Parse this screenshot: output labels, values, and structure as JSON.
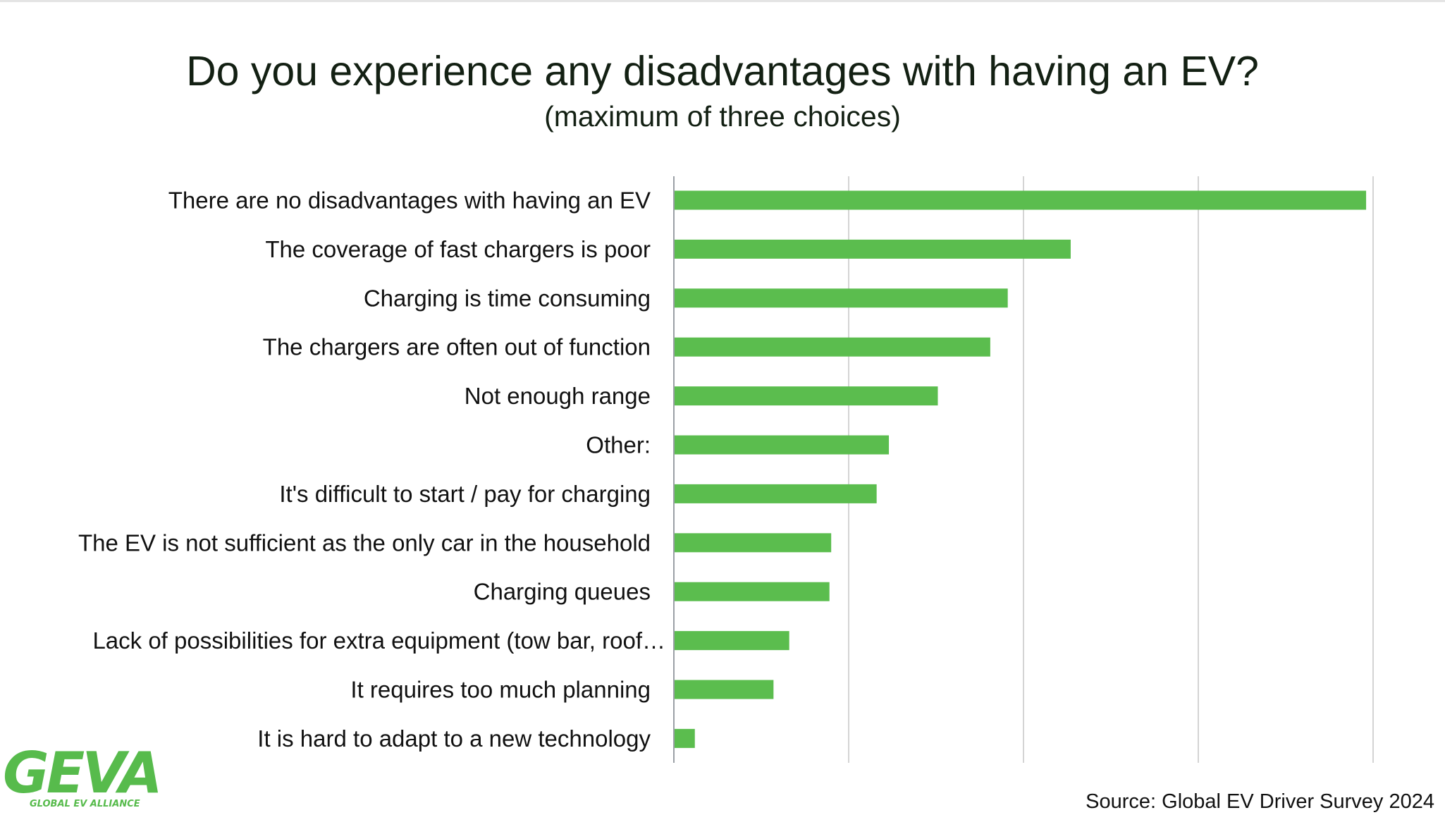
{
  "title": "Do you experience any disadvantages with having an EV?",
  "subtitle": "(maximum of three choices)",
  "source": "Source: Global EV Driver Survey 2024",
  "logo": {
    "text": "GEVA",
    "tagline": "GLOBAL EV ALLIANCE",
    "color": "#57bb4c"
  },
  "colors": {
    "bar": "#5bbd4e",
    "grid": "#d4d4d4",
    "axis": "#9a9fa6"
  },
  "chart_data": {
    "type": "bar",
    "orientation": "horizontal",
    "title": "Do you experience any disadvantages with having an EV?",
    "subtitle": "(maximum of three choices)",
    "categories": [
      "There are no disadvantages with having an EV",
      "The coverage of fast chargers is poor",
      "Charging is time consuming",
      "The chargers are often out of function",
      "Not enough range",
      "Other:",
      "It's difficult to start / pay for charging",
      "The EV is not sufficient as the only car in the household",
      "Charging queues",
      "Lack of possibilities for extra equipment (tow bar, roof…",
      "It requires too much planning",
      "It is hard to adapt to a new technology"
    ],
    "values": [
      39.6,
      22.7,
      19.1,
      18.1,
      15.1,
      12.3,
      11.6,
      9.0,
      8.9,
      6.6,
      5.7,
      1.2
    ],
    "xlim": [
      0,
      40
    ],
    "grid": true,
    "xlabel": "",
    "ylabel": ""
  }
}
